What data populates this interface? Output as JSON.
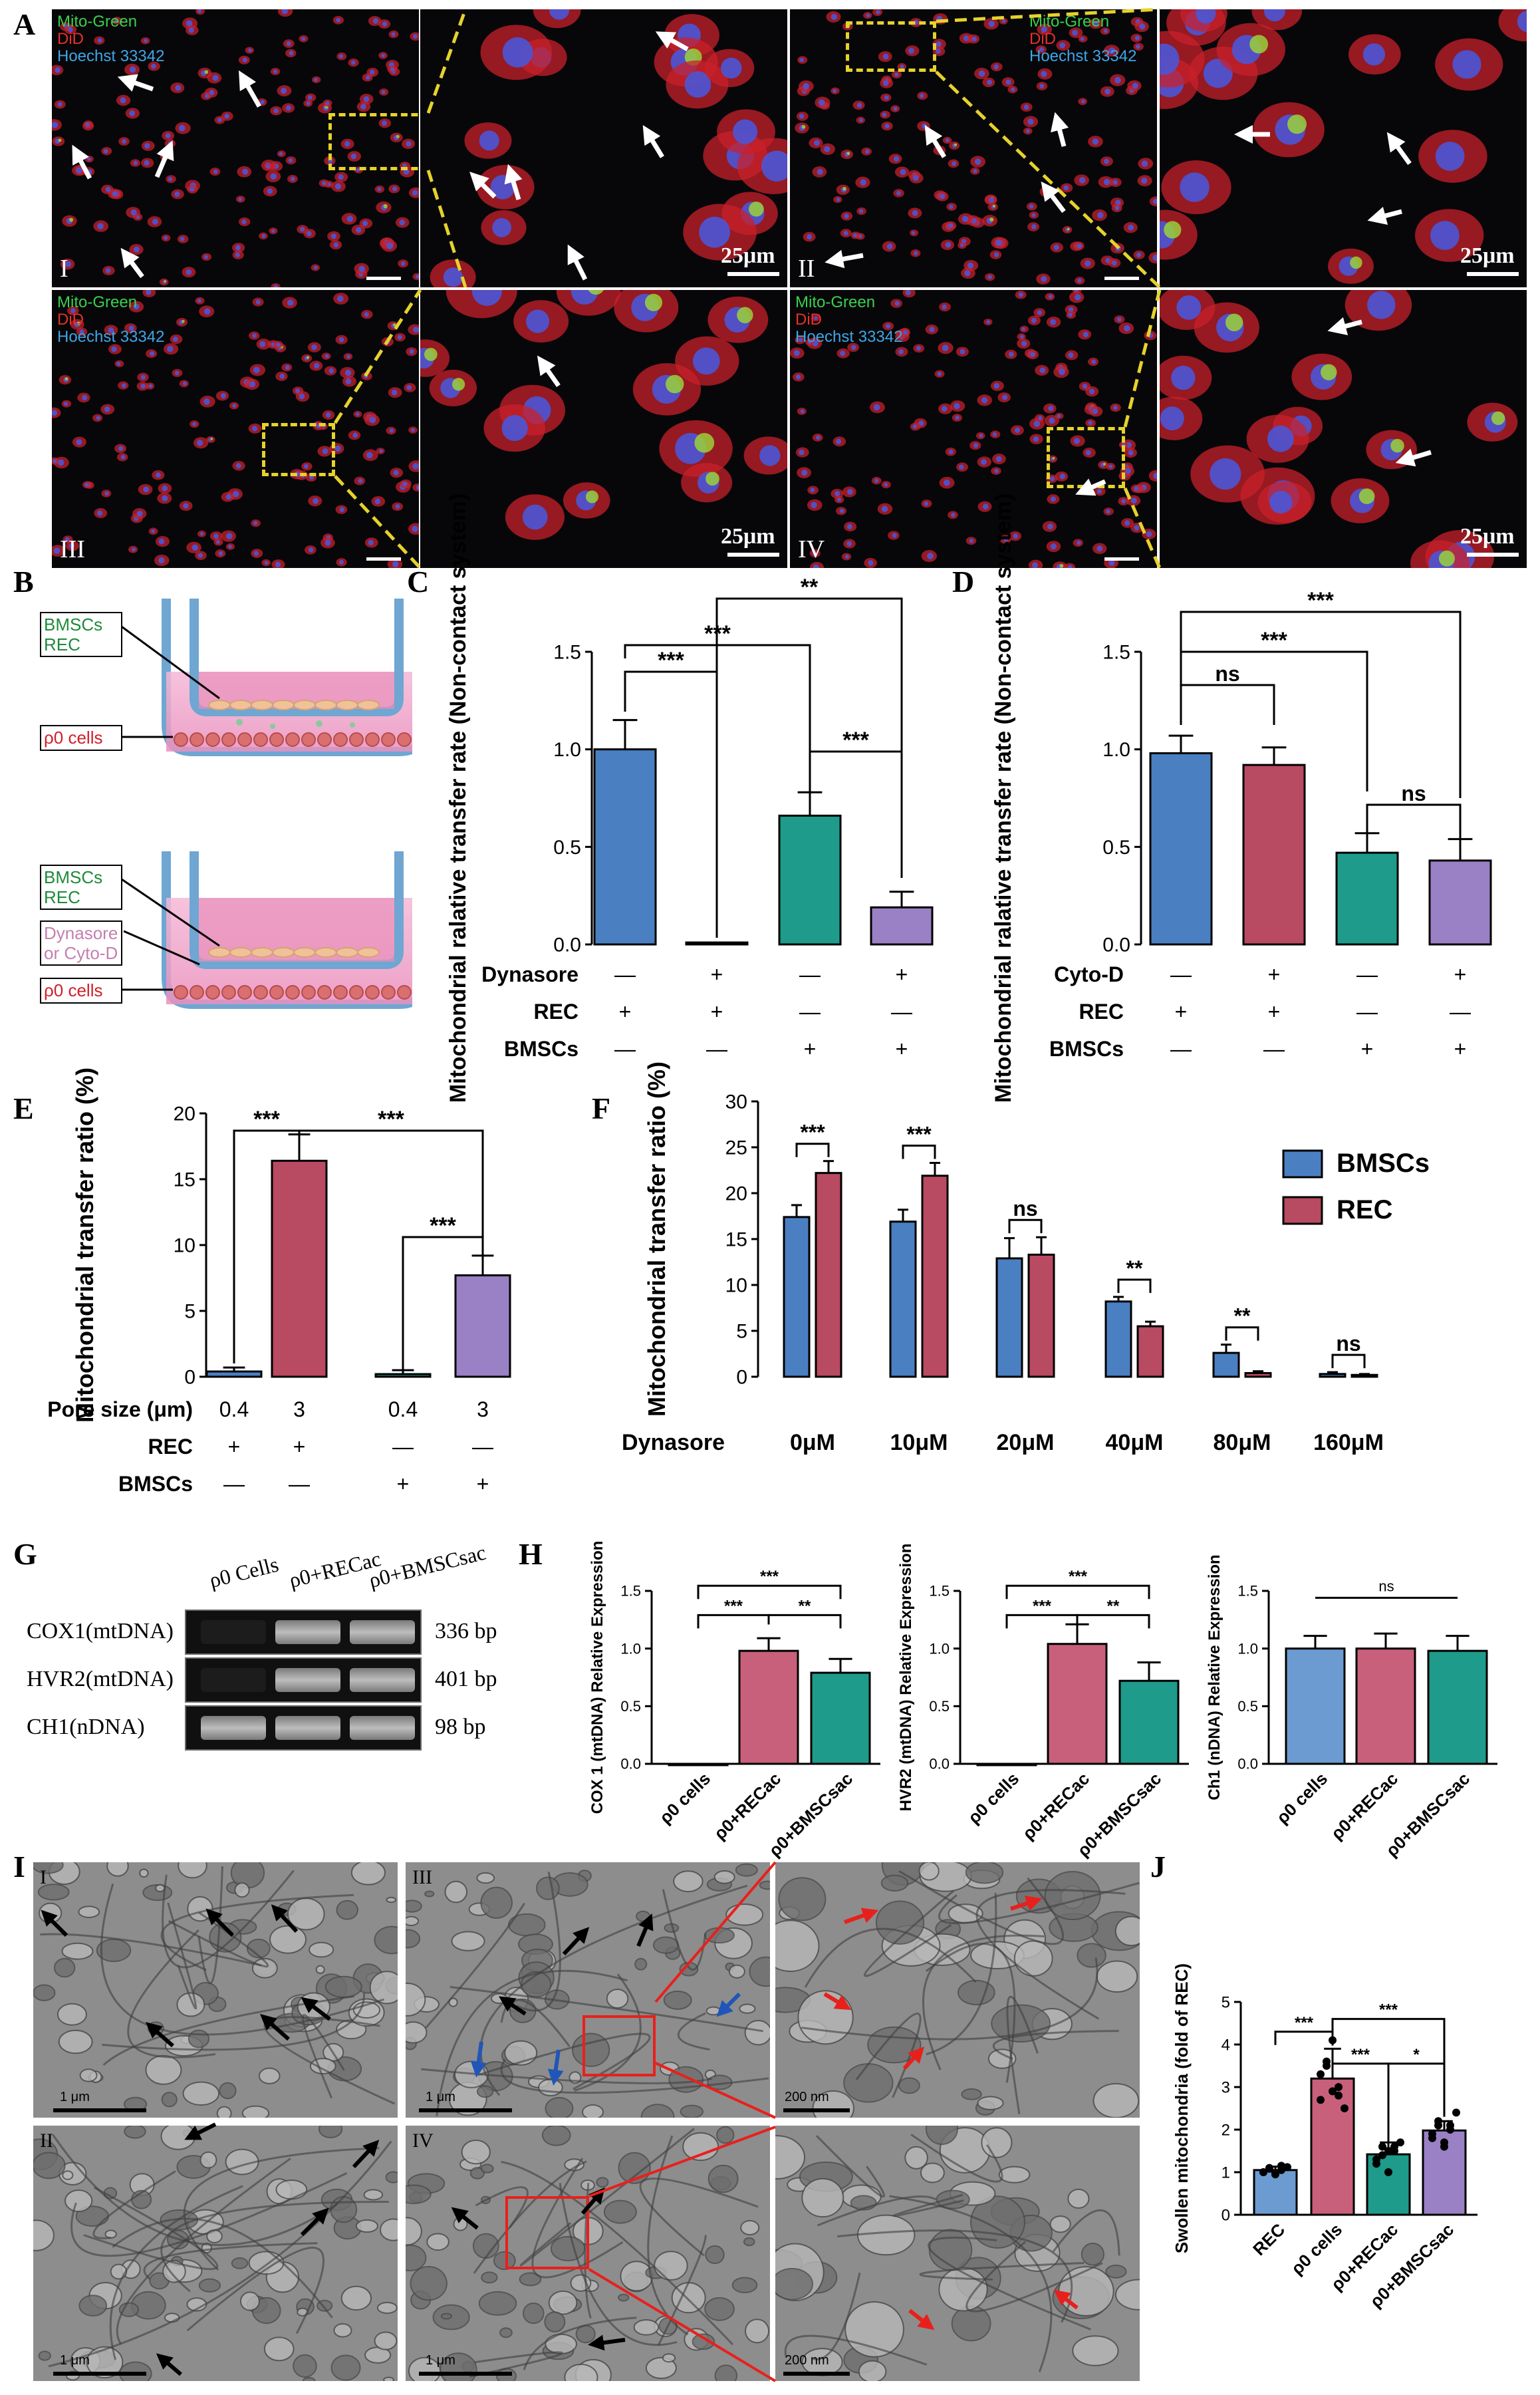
{
  "panel_labels": {
    "A": "A",
    "B": "B",
    "C": "C",
    "D": "D",
    "E": "E",
    "F": "F",
    "G": "G",
    "H": "H",
    "I": "I",
    "J": "J"
  },
  "panelA": {
    "channels": [
      "Mito-Green",
      "DiD",
      "Hoechst 33342"
    ],
    "channel_colors": [
      "#39d14a",
      "#e8302a",
      "#3fa6e6"
    ],
    "roman": [
      "I",
      "II",
      "III",
      "IV"
    ],
    "scale_label": "25μm"
  },
  "panelB": {
    "top": {
      "insert_label": "BMSCs\nREC",
      "bottom_label": "ρ0 cells"
    },
    "bottom": {
      "insert_label": "BMSCs\nREC",
      "drug_label": "Dynasore\nor Cyto-D",
      "bottom_label": "ρ0 cells"
    }
  },
  "chart_data": [
    {
      "id": "C",
      "type": "bar",
      "ylabel": "Mitochondrial ralative transfer rate (Non-contact system)",
      "ylim": [
        0,
        1.5
      ],
      "yticks": [
        0.0,
        0.5,
        1.0,
        1.5
      ],
      "values": [
        1.0,
        0.01,
        0.66,
        0.19
      ],
      "errors": [
        0.15,
        0.0,
        0.12,
        0.08
      ],
      "colors": [
        "#4a7fc1",
        "#b84a61",
        "#1e9b8a",
        "#9a80c4"
      ],
      "rows": [
        {
          "label": "Dynasore",
          "cells": [
            "—",
            "+",
            "—",
            "+"
          ]
        },
        {
          "label": "REC",
          "cells": [
            "+",
            "+",
            "—",
            "—"
          ]
        },
        {
          "label": "BMSCs",
          "cells": [
            "—",
            "—",
            "+",
            "+"
          ]
        }
      ],
      "sig": [
        "***",
        "***",
        "**",
        "***"
      ]
    },
    {
      "id": "D",
      "type": "bar",
      "ylabel": "Mitochondrial ralative transfer rate (Non-contact system)",
      "ylim": [
        0,
        1.5
      ],
      "yticks": [
        0.0,
        0.5,
        1.0,
        1.5
      ],
      "values": [
        0.98,
        0.92,
        0.47,
        0.43
      ],
      "errors": [
        0.09,
        0.09,
        0.1,
        0.11
      ],
      "colors": [
        "#4a7fc1",
        "#b84a61",
        "#1e9b8a",
        "#9a80c4"
      ],
      "rows": [
        {
          "label": "Cyto-D",
          "cells": [
            "—",
            "+",
            "—",
            "+"
          ]
        },
        {
          "label": "REC",
          "cells": [
            "+",
            "+",
            "—",
            "—"
          ]
        },
        {
          "label": "BMSCs",
          "cells": [
            "—",
            "—",
            "+",
            "+"
          ]
        }
      ],
      "sig": [
        "ns",
        "***",
        "***",
        "ns"
      ]
    },
    {
      "id": "E",
      "type": "bar",
      "ylabel": "Mitochondrial transfer ratio (%)",
      "ylim": [
        0,
        20
      ],
      "yticks": [
        0,
        5,
        10,
        15,
        20
      ],
      "values": [
        0.4,
        16.4,
        0.2,
        7.7
      ],
      "errors": [
        0.3,
        2.0,
        0.3,
        1.5
      ],
      "colors": [
        "#4a7fc1",
        "#b84a61",
        "#1e9b8a",
        "#9a80c4"
      ],
      "rows": [
        {
          "label": "Pore size (μm)",
          "cells": [
            "0.4",
            "3",
            "0.4",
            "3"
          ]
        },
        {
          "label": "REC",
          "cells": [
            "+",
            "+",
            "—",
            "—"
          ]
        },
        {
          "label": "BMSCs",
          "cells": [
            "—",
            "—",
            "+",
            "+"
          ]
        }
      ],
      "sig": [
        "***",
        "***",
        "***"
      ]
    },
    {
      "id": "F",
      "type": "bar",
      "ylabel": "Mitochondrial transfer ratio (%)",
      "ylim": [
        0,
        30
      ],
      "yticks": [
        0,
        5,
        10,
        15,
        20,
        25,
        30
      ],
      "xlabel": "Dynasore",
      "categories": [
        "0μM",
        "10μM",
        "20μM",
        "40μM",
        "80μM",
        "160μM"
      ],
      "series": [
        {
          "name": "BMSCs",
          "color": "#4a7fc1",
          "values": [
            17.4,
            16.9,
            12.9,
            8.2,
            2.6,
            0.3
          ],
          "errors": [
            1.3,
            1.3,
            2.2,
            0.5,
            0.9,
            0.2
          ]
        },
        {
          "name": "REC",
          "color": "#b84a61",
          "values": [
            22.2,
            21.9,
            13.3,
            5.5,
            0.4,
            0.2
          ],
          "errors": [
            1.3,
            1.4,
            1.9,
            0.5,
            0.2,
            0.1
          ]
        }
      ],
      "sig": [
        "***",
        "***",
        "ns",
        "**",
        "**",
        "ns"
      ]
    },
    {
      "id": "H1",
      "type": "bar",
      "ylabel": "COX 1 (mtDNA) Relative Expression",
      "ylim": [
        0,
        1.5
      ],
      "yticks": [
        0.0,
        0.5,
        1.0,
        1.5
      ],
      "categories": [
        "ρ0 cells",
        "ρ0+RECac",
        "ρ0+BMSCsac"
      ],
      "values": [
        0,
        0.98,
        0.79
      ],
      "errors": [
        0,
        0.11,
        0.12
      ],
      "colors": [
        "#6b9bd1",
        "#c8607b",
        "#1e9b8a"
      ],
      "sig": [
        "***",
        "***",
        "**"
      ]
    },
    {
      "id": "H2",
      "type": "bar",
      "ylabel": "HVR2 (mtDNA) Relative Expression",
      "ylim": [
        0,
        1.5
      ],
      "yticks": [
        0.0,
        0.5,
        1.0,
        1.5
      ],
      "categories": [
        "ρ0 cells",
        "ρ0+RECac",
        "ρ0+BMSCsac"
      ],
      "values": [
        0,
        1.04,
        0.72
      ],
      "errors": [
        0,
        0.17,
        0.16
      ],
      "colors": [
        "#6b9bd1",
        "#c8607b",
        "#1e9b8a"
      ],
      "sig": [
        "***",
        "***",
        "**"
      ]
    },
    {
      "id": "H3",
      "type": "bar",
      "ylabel": "Ch1 (nDNA) Relative Expression",
      "ylim": [
        0,
        1.5
      ],
      "yticks": [
        0.0,
        0.5,
        1.0,
        1.5
      ],
      "categories": [
        "ρ0 cells",
        "ρ0+RECac",
        "ρ0+BMSCsac"
      ],
      "values": [
        1.0,
        1.0,
        0.98
      ],
      "errors": [
        0.11,
        0.13,
        0.13
      ],
      "colors": [
        "#6b9bd1",
        "#c8607b",
        "#1e9b8a"
      ],
      "sig": [
        "ns"
      ]
    },
    {
      "id": "J",
      "type": "bar",
      "ylabel": "Swollen mitochondria (fold of REC)",
      "ylim": [
        0,
        5
      ],
      "yticks": [
        0,
        1,
        2,
        3,
        4,
        5
      ],
      "categories": [
        "REC",
        "ρ0 cells",
        "ρ0+RECac",
        "ρ0+BMSCsac"
      ],
      "values": [
        1.05,
        3.2,
        1.42,
        1.98
      ],
      "errors": [
        0.08,
        0.7,
        0.28,
        0.22
      ],
      "colors": [
        "#6b9bd1",
        "#c8607b",
        "#1e9b8a",
        "#9a80c4"
      ],
      "points": [
        [
          1.0,
          1.1,
          0.95,
          1.05,
          1.12,
          1.0,
          1.08,
          0.98,
          1.15
        ],
        [
          2.7,
          3.5,
          4.1,
          3.0,
          2.5,
          3.3,
          3.6,
          2.9,
          2.8
        ],
        [
          1.3,
          1.6,
          1.0,
          1.5,
          1.7,
          1.2,
          1.4,
          1.5,
          1.6
        ],
        [
          1.8,
          2.2,
          1.7,
          2.0,
          2.4,
          1.9,
          2.1,
          1.6,
          2.1
        ]
      ],
      "sig": [
        "***",
        "***",
        "***",
        "***",
        "*"
      ]
    }
  ],
  "panelG": {
    "columns": [
      "ρ0 Cells",
      "ρ0+RECac",
      "ρ0+BMSCsac"
    ],
    "rows": [
      {
        "gene": "COX1(mtDNA)",
        "size": "336 bp"
      },
      {
        "gene": "HVR2(mtDNA)",
        "size": "401 bp"
      },
      {
        "gene": "CH1(nDNA)",
        "size": "98 bp"
      }
    ]
  },
  "panelI": {
    "roman": [
      "I",
      "II",
      "III",
      "IV"
    ],
    "scale_1um": "1 μm",
    "scale_200nm": "200 nm"
  }
}
